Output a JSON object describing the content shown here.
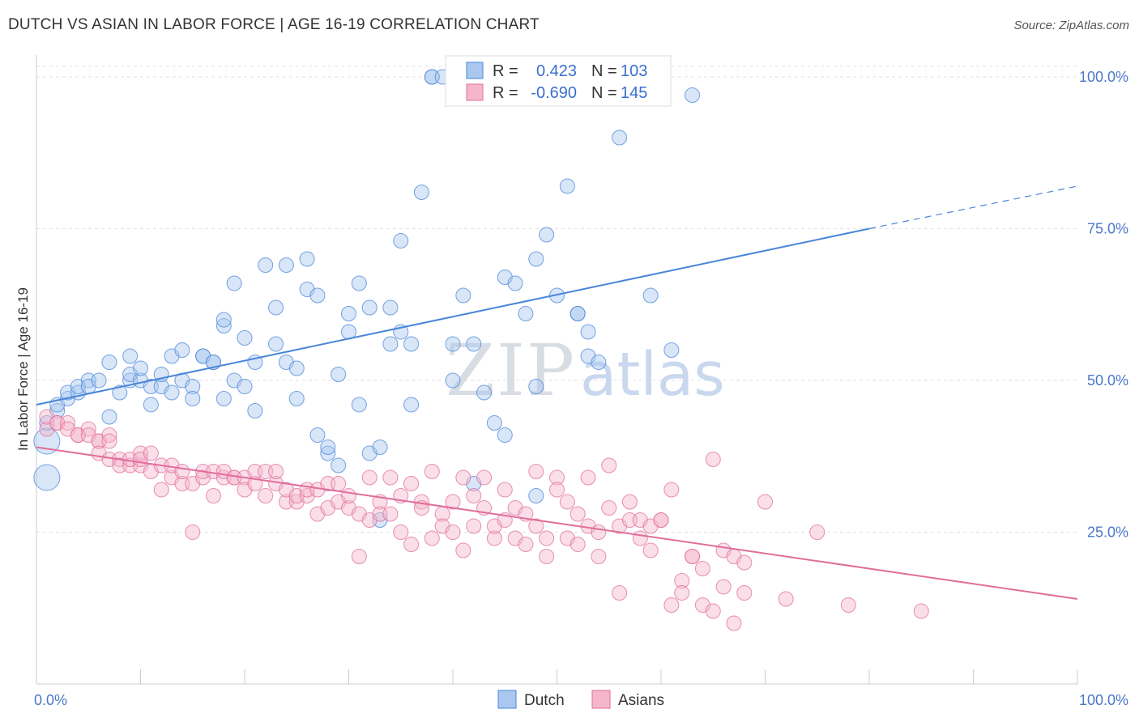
{
  "title": "DUTCH VS ASIAN IN LABOR FORCE | AGE 16-19 CORRELATION CHART",
  "source": "Source: ZipAtlas.com",
  "chart_data": {
    "type": "scatter",
    "title": "DUTCH VS ASIAN IN LABOR FORCE | AGE 16-19 CORRELATION CHART",
    "ylabel": "In Labor Force | Age 16-19",
    "xlabel": "",
    "xlim": [
      0,
      100
    ],
    "ylim": [
      0,
      102
    ],
    "x_tick_labels": [
      "0.0%",
      "100.0%"
    ],
    "y_ticks": [
      25,
      50,
      75,
      100
    ],
    "y_tick_labels": [
      "25.0%",
      "50.0%",
      "75.0%",
      "100.0%"
    ],
    "grid": true,
    "legend_placement": "top-center",
    "watermark": [
      "ZIP",
      "atlas"
    ],
    "legend_stats": [
      {
        "r_label": "R =",
        "r_value": "0.423",
        "n_label": "N =",
        "n_value": "103"
      },
      {
        "r_label": "R =",
        "r_value": "-0.690",
        "n_label": "N =",
        "n_value": "145"
      }
    ],
    "series": [
      {
        "name": "Dutch",
        "color": "#4a86d8",
        "fill": "#a9c7ef",
        "trend": {
          "x0": 0,
          "y0": 46,
          "x1": 80,
          "y1": 75,
          "dash_to_x": 100,
          "dash_to_y": 82
        },
        "points": [
          [
            1,
            34
          ],
          [
            1,
            40
          ],
          [
            1,
            43
          ],
          [
            2,
            45
          ],
          [
            2,
            46
          ],
          [
            3,
            47
          ],
          [
            3,
            48
          ],
          [
            4,
            48
          ],
          [
            4,
            49
          ],
          [
            5,
            50
          ],
          [
            5,
            49
          ],
          [
            6,
            50
          ],
          [
            7,
            44
          ],
          [
            7,
            53
          ],
          [
            8,
            48
          ],
          [
            9,
            50
          ],
          [
            9,
            51
          ],
          [
            9,
            54
          ],
          [
            10,
            50
          ],
          [
            10,
            52
          ],
          [
            11,
            46
          ],
          [
            11,
            49
          ],
          [
            12,
            49
          ],
          [
            12,
            51
          ],
          [
            13,
            48
          ],
          [
            13,
            54
          ],
          [
            14,
            50
          ],
          [
            14,
            55
          ],
          [
            15,
            49
          ],
          [
            15,
            47
          ],
          [
            16,
            54
          ],
          [
            16,
            54
          ],
          [
            17,
            53
          ],
          [
            17,
            53
          ],
          [
            18,
            59
          ],
          [
            18,
            60
          ],
          [
            18,
            47
          ],
          [
            19,
            66
          ],
          [
            19,
            50
          ],
          [
            20,
            49
          ],
          [
            20,
            57
          ],
          [
            21,
            45
          ],
          [
            21,
            53
          ],
          [
            22,
            69
          ],
          [
            23,
            62
          ],
          [
            23,
            56
          ],
          [
            24,
            69
          ],
          [
            24,
            53
          ],
          [
            25,
            47
          ],
          [
            25,
            52
          ],
          [
            26,
            70
          ],
          [
            26,
            65
          ],
          [
            27,
            64
          ],
          [
            27,
            41
          ],
          [
            28,
            38
          ],
          [
            28,
            39
          ],
          [
            29,
            36
          ],
          [
            29,
            51
          ],
          [
            30,
            61
          ],
          [
            30,
            58
          ],
          [
            31,
            66
          ],
          [
            31,
            46
          ],
          [
            32,
            62
          ],
          [
            32,
            38
          ],
          [
            33,
            39
          ],
          [
            33,
            27
          ],
          [
            34,
            56
          ],
          [
            34,
            62
          ],
          [
            35,
            73
          ],
          [
            35,
            58
          ],
          [
            36,
            56
          ],
          [
            36,
            46
          ],
          [
            37,
            81
          ],
          [
            38,
            100
          ],
          [
            38,
            100
          ],
          [
            39,
            100
          ],
          [
            40,
            100
          ],
          [
            40,
            50
          ],
          [
            40,
            56
          ],
          [
            41,
            64
          ],
          [
            42,
            56
          ],
          [
            42,
            33
          ],
          [
            43,
            48
          ],
          [
            44,
            43
          ],
          [
            45,
            41
          ],
          [
            45,
            67
          ],
          [
            46,
            66
          ],
          [
            47,
            61
          ],
          [
            48,
            70
          ],
          [
            48,
            31
          ],
          [
            48,
            49
          ],
          [
            49,
            74
          ],
          [
            50,
            64
          ],
          [
            51,
            82
          ],
          [
            52,
            61
          ],
          [
            52,
            61
          ],
          [
            53,
            58
          ],
          [
            53,
            54
          ],
          [
            54,
            53
          ],
          [
            56,
            90
          ],
          [
            59,
            64
          ],
          [
            61,
            55
          ],
          [
            63,
            97
          ]
        ]
      },
      {
        "name": "Asians",
        "color": "#e06d9a",
        "fill": "#f5b6cc",
        "trend": {
          "x0": 0,
          "y0": 39,
          "x1": 100,
          "y1": 14
        },
        "points": [
          [
            1,
            42
          ],
          [
            1,
            44
          ],
          [
            2,
            43
          ],
          [
            2,
            43
          ],
          [
            3,
            43
          ],
          [
            3,
            42
          ],
          [
            4,
            41
          ],
          [
            4,
            41
          ],
          [
            5,
            42
          ],
          [
            5,
            41
          ],
          [
            6,
            40
          ],
          [
            6,
            40
          ],
          [
            6,
            38
          ],
          [
            7,
            41
          ],
          [
            7,
            40
          ],
          [
            7,
            37
          ],
          [
            8,
            37
          ],
          [
            8,
            36
          ],
          [
            9,
            36
          ],
          [
            9,
            37
          ],
          [
            10,
            36
          ],
          [
            10,
            38
          ],
          [
            10,
            37
          ],
          [
            11,
            35
          ],
          [
            11,
            38
          ],
          [
            12,
            32
          ],
          [
            12,
            36
          ],
          [
            13,
            34
          ],
          [
            13,
            36
          ],
          [
            14,
            33
          ],
          [
            14,
            35
          ],
          [
            15,
            33
          ],
          [
            15,
            25
          ],
          [
            16,
            34
          ],
          [
            16,
            35
          ],
          [
            17,
            31
          ],
          [
            17,
            35
          ],
          [
            18,
            34
          ],
          [
            18,
            35
          ],
          [
            19,
            34
          ],
          [
            19,
            34
          ],
          [
            20,
            34
          ],
          [
            20,
            32
          ],
          [
            21,
            33
          ],
          [
            21,
            35
          ],
          [
            22,
            31
          ],
          [
            22,
            35
          ],
          [
            23,
            33
          ],
          [
            23,
            35
          ],
          [
            24,
            30
          ],
          [
            24,
            32
          ],
          [
            25,
            30
          ],
          [
            25,
            31
          ],
          [
            26,
            31
          ],
          [
            26,
            32
          ],
          [
            27,
            28
          ],
          [
            27,
            32
          ],
          [
            28,
            29
          ],
          [
            28,
            33
          ],
          [
            29,
            30
          ],
          [
            29,
            33
          ],
          [
            30,
            29
          ],
          [
            30,
            31
          ],
          [
            31,
            28
          ],
          [
            31,
            21
          ],
          [
            32,
            34
          ],
          [
            32,
            27
          ],
          [
            33,
            30
          ],
          [
            33,
            28
          ],
          [
            34,
            34
          ],
          [
            34,
            28
          ],
          [
            35,
            25
          ],
          [
            35,
            31
          ],
          [
            36,
            23
          ],
          [
            36,
            33
          ],
          [
            37,
            30
          ],
          [
            37,
            29
          ],
          [
            38,
            24
          ],
          [
            38,
            35
          ],
          [
            39,
            28
          ],
          [
            39,
            26
          ],
          [
            40,
            25
          ],
          [
            40,
            30
          ],
          [
            41,
            22
          ],
          [
            41,
            34
          ],
          [
            42,
            26
          ],
          [
            42,
            31
          ],
          [
            43,
            34
          ],
          [
            43,
            29
          ],
          [
            44,
            24
          ],
          [
            44,
            26
          ],
          [
            45,
            27
          ],
          [
            45,
            32
          ],
          [
            46,
            24
          ],
          [
            46,
            29
          ],
          [
            47,
            23
          ],
          [
            47,
            28
          ],
          [
            48,
            26
          ],
          [
            48,
            35
          ],
          [
            49,
            24
          ],
          [
            49,
            21
          ],
          [
            50,
            34
          ],
          [
            50,
            32
          ],
          [
            51,
            30
          ],
          [
            51,
            24
          ],
          [
            52,
            28
          ],
          [
            52,
            23
          ],
          [
            53,
            34
          ],
          [
            53,
            26
          ],
          [
            54,
            21
          ],
          [
            54,
            25
          ],
          [
            55,
            36
          ],
          [
            55,
            29
          ],
          [
            56,
            26
          ],
          [
            56,
            15
          ],
          [
            57,
            27
          ],
          [
            57,
            30
          ],
          [
            58,
            27
          ],
          [
            58,
            24
          ],
          [
            59,
            26
          ],
          [
            59,
            22
          ],
          [
            60,
            27
          ],
          [
            60,
            27
          ],
          [
            61,
            32
          ],
          [
            61,
            13
          ],
          [
            62,
            17
          ],
          [
            62,
            15
          ],
          [
            63,
            21
          ],
          [
            63,
            21
          ],
          [
            64,
            19
          ],
          [
            64,
            13
          ],
          [
            65,
            37
          ],
          [
            65,
            12
          ],
          [
            66,
            22
          ],
          [
            66,
            16
          ],
          [
            67,
            21
          ],
          [
            67,
            10
          ],
          [
            68,
            20
          ],
          [
            68,
            15
          ],
          [
            70,
            30
          ],
          [
            72,
            14
          ],
          [
            75,
            25
          ],
          [
            78,
            13
          ],
          [
            85,
            12
          ]
        ]
      }
    ]
  },
  "legend": {
    "dutch_label": "Dutch",
    "asians_label": "Asians"
  }
}
